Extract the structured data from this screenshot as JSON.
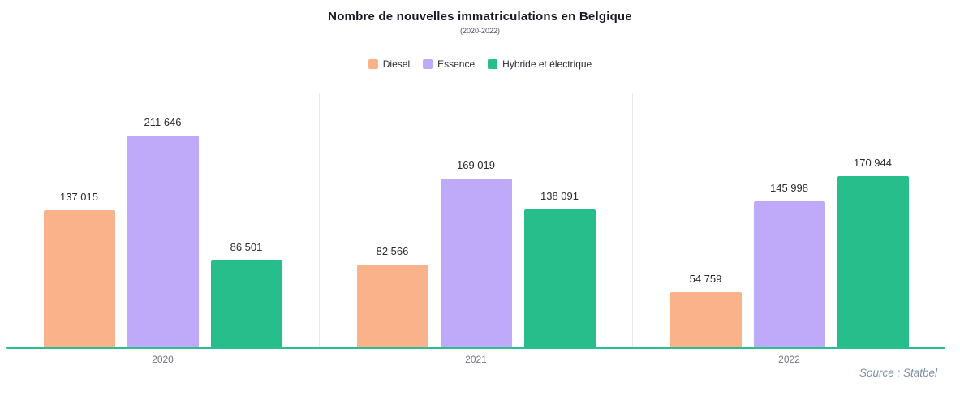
{
  "title": "Nombre de nouvelles immatriculations en Belgique",
  "subtitle": "(2020-2022)",
  "source": "Source : Statbel",
  "chart_data": {
    "type": "bar",
    "title": "Nombre de nouvelles immatriculations en Belgique",
    "subtitle": "(2020-2022)",
    "categories": [
      "2020",
      "2021",
      "2022"
    ],
    "series": [
      {
        "name": "Diesel",
        "color": "#f9b289",
        "values": [
          137015,
          82566,
          54759
        ]
      },
      {
        "name": "Essence",
        "color": "#bfa9f9",
        "values": [
          211646,
          169019,
          145998
        ]
      },
      {
        "name": "Hybride et électrique",
        "color": "#27be8c",
        "values": [
          86501,
          138091,
          170944
        ]
      }
    ],
    "xlabel": "",
    "ylabel": "",
    "ylim": [
      0,
      220000
    ],
    "grid": false,
    "legend_position": "top",
    "baseline_color": "#2abf8e",
    "value_label_format": "thousands separated by space"
  }
}
